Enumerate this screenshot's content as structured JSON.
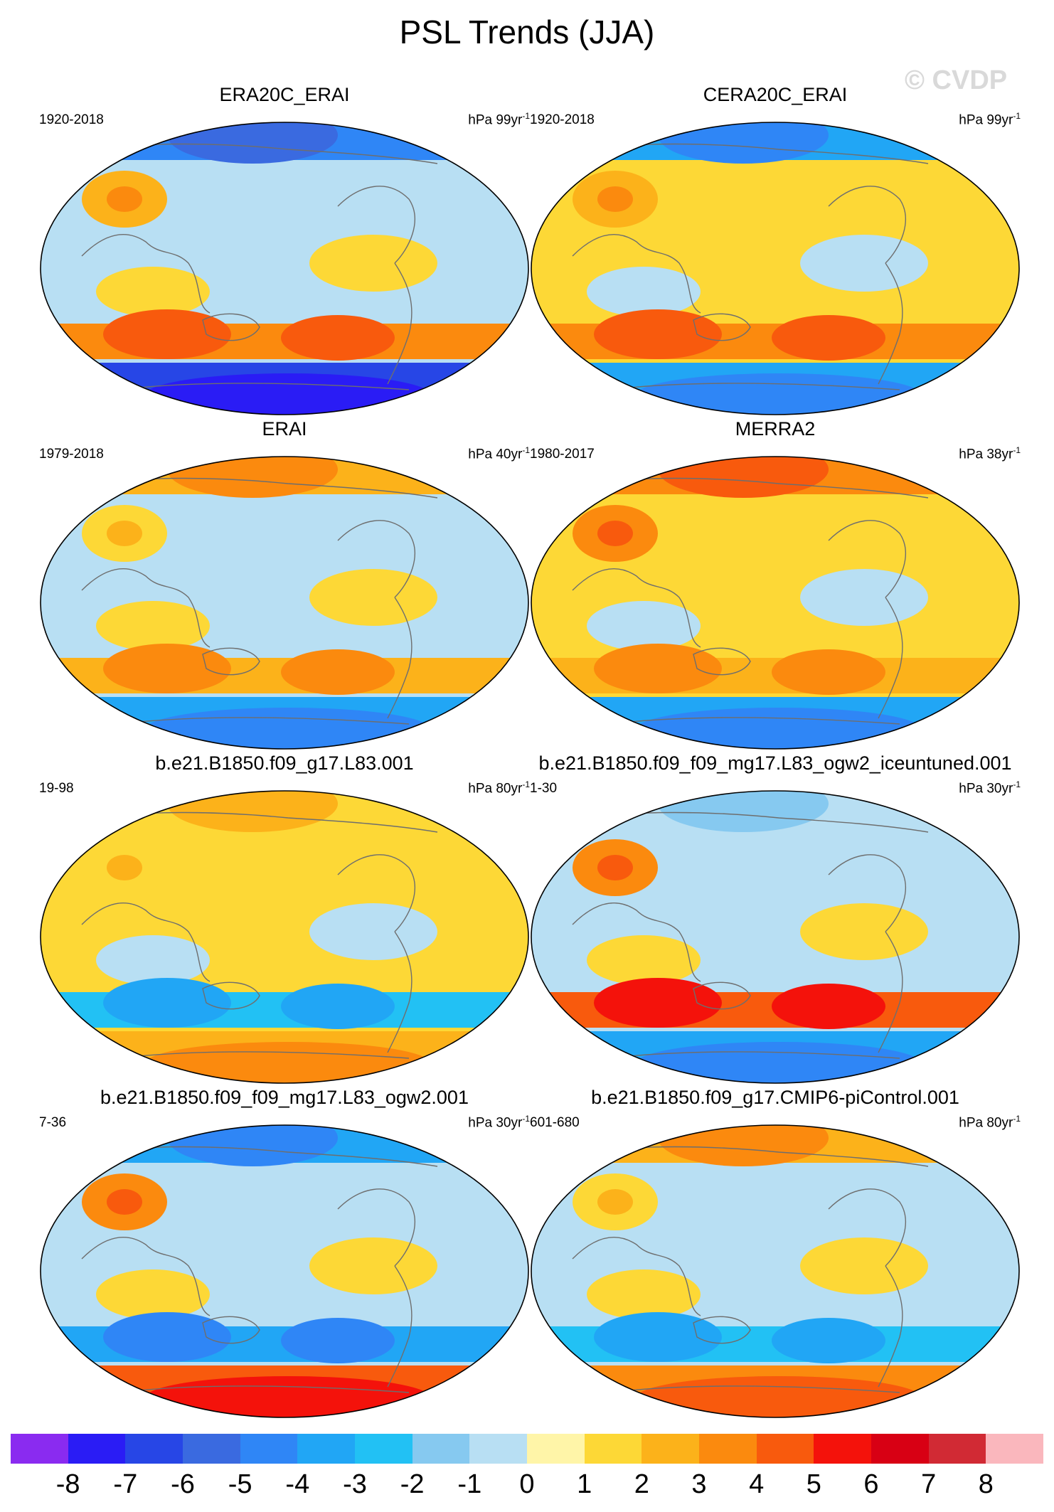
{
  "title": "PSL Trends (JJA)",
  "watermark": "© CVDP",
  "panels": [
    {
      "name": "ERA20C_ERAI",
      "period": "1920-2018",
      "units": "hPa 99yr",
      "exp": "-1",
      "pattern": {
        "north": -5,
        "south": -7,
        "midlat": 3,
        "tropics": -1,
        "eurasia": 2
      }
    },
    {
      "name": "CERA20C_ERAI",
      "period": "1920-2018",
      "units": "hPa 99yr",
      "exp": "-1",
      "pattern": {
        "north": -4,
        "south": -4,
        "midlat": 3,
        "tropics": 1,
        "eurasia": 2
      }
    },
    {
      "name": "ERAI",
      "period": "1979-2018",
      "units": "hPa 40yr",
      "exp": "-1",
      "pattern": {
        "north": 2,
        "south": -4,
        "midlat": 2,
        "tropics": -1,
        "eurasia": 1
      }
    },
    {
      "name": "MERRA2",
      "period": "1980-2017",
      "units": "hPa 38yr",
      "exp": "-1",
      "pattern": {
        "north": 3,
        "south": -4,
        "midlat": 2,
        "tropics": 1,
        "eurasia": 3
      }
    },
    {
      "name": "b.e21.B1850.f09_g17.L83.001",
      "period": "19-98",
      "units": "hPa 80yr",
      "exp": "-1",
      "pattern": {
        "north": 1,
        "south": 2,
        "midlat": -3,
        "tropics": 1,
        "eurasia": 1
      }
    },
    {
      "name": "b.e21.B1850.f09_f09_mg17.L83_ogw2_iceuntuned.001",
      "period": "1-30",
      "units": "hPa 30yr",
      "exp": "-1",
      "pattern": {
        "north": -1,
        "south": -4,
        "midlat": 4,
        "tropics": -1,
        "eurasia": 3
      }
    },
    {
      "name": "b.e21.B1850.f09_f09_mg17.L83_ogw2.001",
      "period": "7-36",
      "units": "hPa 30yr",
      "exp": "-1",
      "pattern": {
        "north": -4,
        "south": 4,
        "midlat": -4,
        "tropics": -1,
        "eurasia": 3
      }
    },
    {
      "name": "b.e21.B1850.f09_g17.CMIP6-piControl.001",
      "period": "601-680",
      "units": "hPa 80yr",
      "exp": "-1",
      "pattern": {
        "north": 2,
        "south": 3,
        "midlat": -3,
        "tropics": -1,
        "eurasia": 1
      }
    }
  ],
  "colorbar": {
    "labels": [
      "-8",
      "-7",
      "-6",
      "-5",
      "-4",
      "-3",
      "-2",
      "-1",
      "0",
      "1",
      "2",
      "3",
      "4",
      "5",
      "6",
      "7",
      "8"
    ],
    "colors": [
      "#8a2bf0",
      "#2a1cf5",
      "#2746e6",
      "#3a6ae0",
      "#2f86f6",
      "#21a6f5",
      "#22c1f4",
      "#86c9f0",
      "#b8dff3",
      "#fff5a8",
      "#fdd836",
      "#fcb21a",
      "#fb8a0e",
      "#f85a0d",
      "#f4120b",
      "#d80014",
      "#d12a34",
      "#fab7bd"
    ]
  }
}
